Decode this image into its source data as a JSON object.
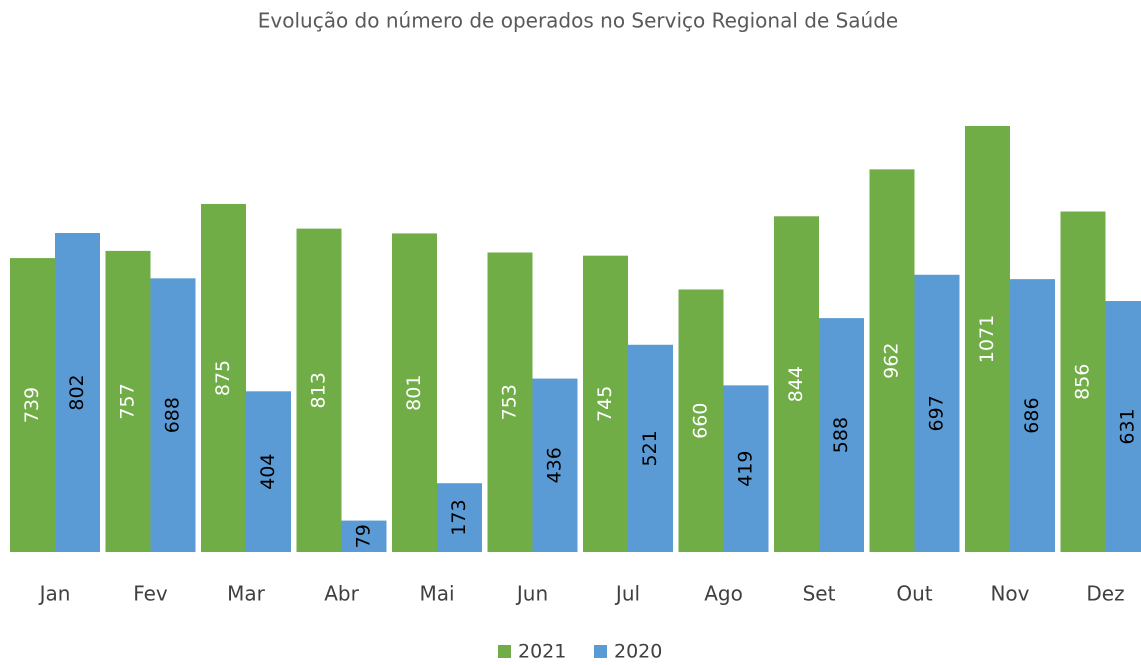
{
  "chart_data": {
    "type": "bar",
    "title": "Evolução do número de operados no Serviço Regional de Saúde",
    "categories": [
      "Jan",
      "Fev",
      "Mar",
      "Abr",
      "Mai",
      "Jun",
      "Jul",
      "Ago",
      "Set",
      "Out",
      "Nov",
      "Dez"
    ],
    "series": [
      {
        "name": "2021",
        "color": "#70ad47",
        "values": [
          739,
          757,
          875,
          813,
          801,
          753,
          745,
          660,
          844,
          962,
          1071,
          856
        ]
      },
      {
        "name": "2020",
        "color": "#5b9bd5",
        "values": [
          802,
          688,
          404,
          79,
          173,
          436,
          521,
          419,
          588,
          697,
          686,
          631
        ]
      }
    ],
    "legend": "bottom"
  }
}
